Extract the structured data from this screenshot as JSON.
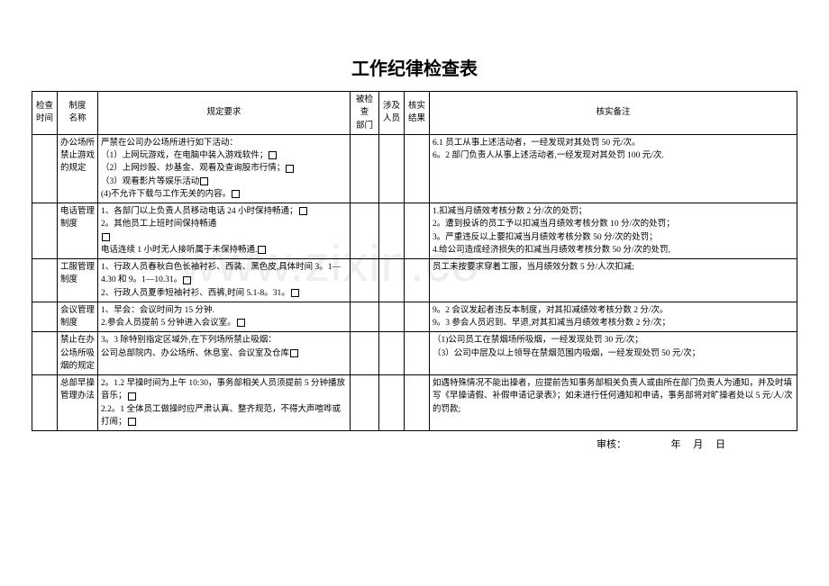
{
  "title": "工作纪律检查表",
  "watermark": "www.zixin.co",
  "headers": {
    "time": "检查\n时间",
    "system": "制度\n名称",
    "requirement": "规定要求",
    "dept": "被检查\n部门",
    "person": "涉及\n人员",
    "result": "核实\n结果",
    "note": "核实备注"
  },
  "rows": {
    "r1": {
      "system": "办公场所禁止游戏的规定",
      "req_l1": "严禁在公司办公场所进行如下活动：",
      "req_l2": "（1）上网玩游戏，在电脑中装入游戏软件；",
      "req_l3": "（2）上网炒股、炒基金、观看及查询股市行情；",
      "req_l4": "（3）观看影片等娱乐活动",
      "req_l5": "(4)不允许下载与工作无关的内容。",
      "note_l1": "6.1 员工从事上述活动者，一经发现对其处罚 50 元/次。",
      "note_l2": "6。2 部门负责人从事上述活动者,一经发现对其处罚 100 元/次."
    },
    "r2": {
      "system": "电话管理制度",
      "req_l1": "1、各部门以上负责人员移动电话 24 小时保持畅通；",
      "req_l2": "2。其他员工上班时间保持畅通",
      "req_l3": "电话连续 1 小时无人接听属于未保持畅通.",
      "note_l1": "1.扣减当月绩效考核分数 2 分/次的处罚；",
      "note_l2": "2。遭到投诉的员工予以扣减当月绩效考核分数 10 分/次的处罚；",
      "note_l3": "3。严重违反以上要扣减当月绩效考核分数 50 分/次的处罚；",
      "note_l4": "4.给公司造成经济损失的扣减当月绩效考核分数 50 分/次的处罚,"
    },
    "r3": {
      "system": "工服管理制度",
      "req_l1": "1、行政人员春秋白色长袖衬衫、西装、黑色皮,具体时间 3。1—4.30 和 9。1—10.31。",
      "req_l2": "2、行政人员夏季短袖衬衫、西裤,时间 5.1-8。31。",
      "note_l1": "员工未按要求穿着工服，当月绩效分数 5 分/人次扣减;"
    },
    "r4": {
      "system": "会议管理制度",
      "req_l1": "1、早会：会议时间为 15 分钟.",
      "req_l2": "2.参会人员提前 5 分钟进入会议室。",
      "note_l1": "9。2 会议发起者违反本制度，对其扣减绩效考核分数 2 分/次。",
      "note_l2": "9。3 参会人员迟到、早退,对其扣减当月绩效考核分数 2 分/次；"
    },
    "r5": {
      "system": "禁止在办公场所吸烟的规定",
      "req_l1": "3。3 除特别指定区域外,在下列场所禁止吸烟：",
      "req_l2": "公司总部院内、办公场所、休息室、会议室及仓库",
      "note_l1": "（1)公司员工在禁烟场所吸烟，一经发现处罚 30 元/次；",
      "note_l2": "（3）公司中层及以上领导在禁烟范围内吸烟，一经发现处罚 50 元/次；"
    },
    "r6": {
      "system": "总部早操管理办法",
      "req_l1": "2。1.2 早操时间为上午 10:30，事务部相关人员须提前 5 分钟播放音乐；",
      "req_l2": "2.2。1 全体员工做操时应严肃认真、整齐规范，不得大声喧哗或打闹；",
      "note_l1": "如遇特殊情况不能出操者，应提前告知事务部相关负责人或由所在部门负责人为通知，并及时填写《早操请假、补假申请记录表》；如未进行任何通知和申请，事务部将对旷操者处以 5 元/人/次的罚款;"
    }
  },
  "footer": {
    "reviewer": "审核：",
    "year": "年",
    "month": "月",
    "day": "日"
  }
}
